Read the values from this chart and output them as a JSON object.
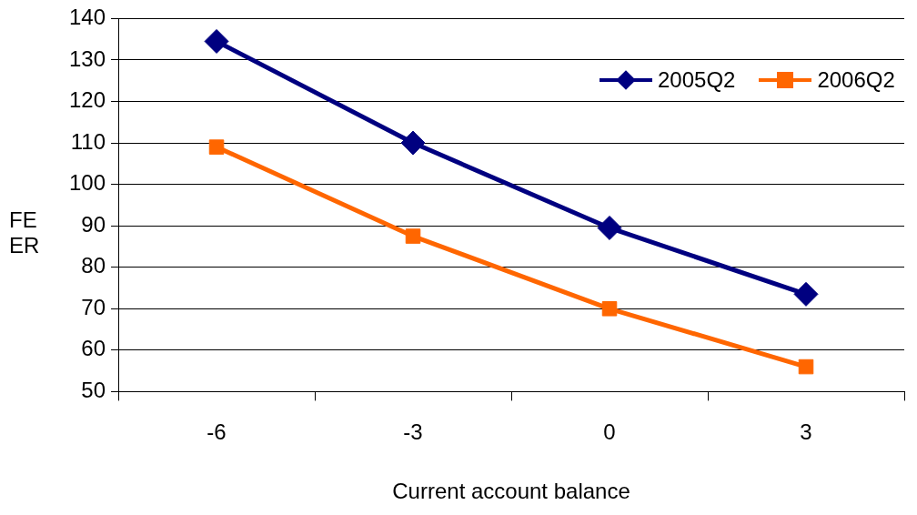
{
  "chart_data": {
    "type": "line",
    "xlabel": "Current account balance",
    "ylabel": "FEER",
    "categories": [
      "-6",
      "-3",
      "0",
      "3"
    ],
    "series": [
      {
        "name": "2005Q2",
        "color": "#000080",
        "marker": "diamond",
        "values": [
          134.5,
          110,
          89.5,
          73.5
        ]
      },
      {
        "name": "2006Q2",
        "color": "#ff6600",
        "marker": "square",
        "values": [
          109,
          87.5,
          70,
          56
        ]
      }
    ],
    "ylim": [
      50,
      140
    ],
    "yticks": [
      50,
      60,
      70,
      80,
      90,
      100,
      110,
      120,
      130,
      140
    ],
    "grid": "y",
    "legend": "top right",
    "line_style": "solid"
  }
}
